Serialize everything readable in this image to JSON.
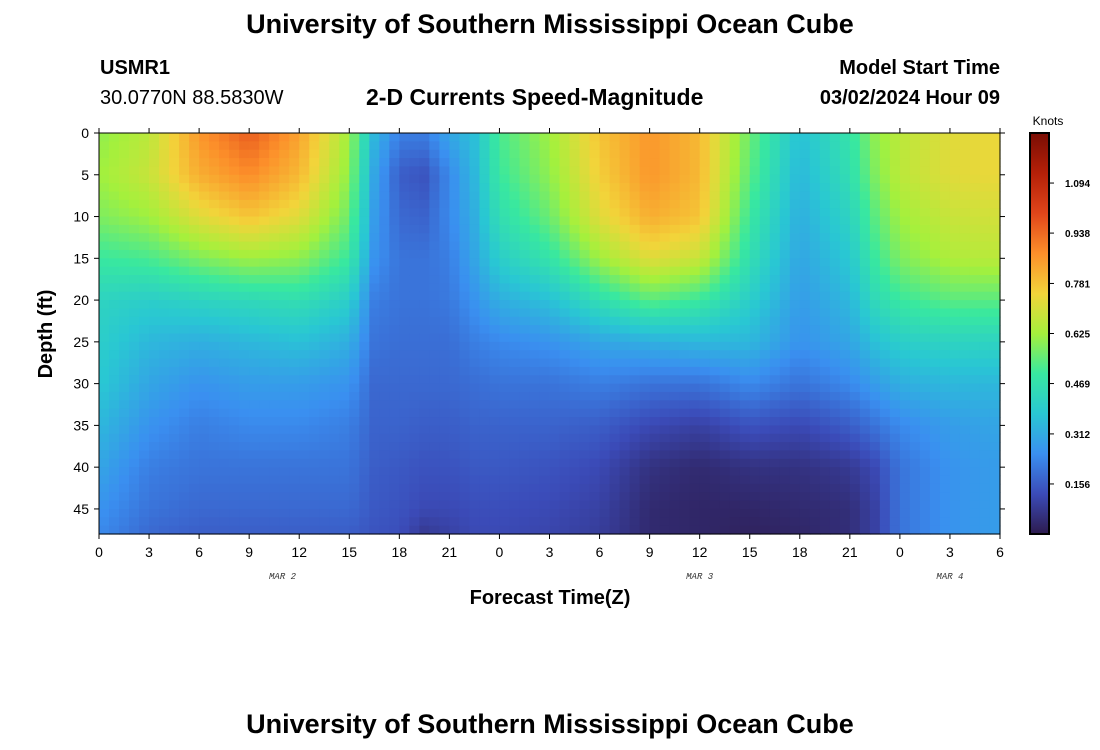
{
  "header": {
    "title": "University of Southern Mississippi Ocean Cube",
    "station_id": "USMR1",
    "coordinates": "30.0770N  88.5830W",
    "subtitle": "2-D Currents Speed-Magnitude",
    "model_start_label": "Model Start Time",
    "model_start_value": "03/02/2024 Hour 09"
  },
  "footer": {
    "title": "University of Southern Mississippi Ocean Cube"
  },
  "colors": {
    "ramp": [
      "#2d1b4e",
      "#3b4bb8",
      "#3a8ff0",
      "#29c7d3",
      "#38e8a0",
      "#a5f03c",
      "#f2d43a",
      "#fc8f2a",
      "#e0451a",
      "#b52008",
      "#7a0d04"
    ]
  },
  "chart_data": {
    "type": "heatmap",
    "xlabel": "Forecast Time(Z)",
    "ylabel": "Depth (ft)",
    "x_tick_labels": [
      "0",
      "3",
      "6",
      "9",
      "12",
      "15",
      "18",
      "21",
      "0",
      "3",
      "6",
      "9",
      "12",
      "15",
      "18",
      "21",
      "0",
      "3",
      "6"
    ],
    "x_range_hours": [
      0,
      54
    ],
    "date_labels": [
      {
        "text": "MAR 2",
        "hour": 11
      },
      {
        "text": "MAR 3",
        "hour": 36
      },
      {
        "text": "MAR 4",
        "hour": 51
      }
    ],
    "y_ticks": [
      0,
      5,
      10,
      15,
      20,
      25,
      30,
      35,
      40,
      45
    ],
    "y_range_ft": [
      0,
      48
    ],
    "y_reversed": true,
    "colorbar": {
      "title": "Knots",
      "ticks": [
        "1.094",
        "0.938",
        "0.781",
        "0.625",
        "0.469",
        "0.312",
        "0.156"
      ],
      "range": [
        0,
        1.25
      ]
    },
    "speed_knots_grid": {
      "hours": [
        0,
        3,
        6,
        9,
        12,
        15,
        16.5,
        18,
        19.5,
        21,
        22.5,
        24,
        27,
        30,
        33,
        36,
        39,
        42,
        45,
        46.5,
        48,
        51,
        54
      ],
      "depths_ft": [
        0,
        5,
        10,
        15,
        20,
        25,
        30,
        35,
        40,
        45,
        48
      ],
      "values": [
        [
          0.6,
          0.62,
          0.58,
          0.5,
          0.42,
          0.4,
          0.38,
          0.34,
          0.3,
          0.26,
          0.24
        ],
        [
          0.66,
          0.68,
          0.62,
          0.52,
          0.4,
          0.34,
          0.3,
          0.26,
          0.22,
          0.2,
          0.18
        ],
        [
          0.86,
          0.82,
          0.72,
          0.58,
          0.42,
          0.32,
          0.26,
          0.22,
          0.2,
          0.18,
          0.16
        ],
        [
          0.96,
          0.88,
          0.78,
          0.62,
          0.44,
          0.34,
          0.28,
          0.24,
          0.2,
          0.18,
          0.16
        ],
        [
          0.84,
          0.8,
          0.72,
          0.6,
          0.46,
          0.36,
          0.28,
          0.24,
          0.2,
          0.18,
          0.16
        ],
        [
          0.62,
          0.6,
          0.56,
          0.5,
          0.4,
          0.32,
          0.26,
          0.22,
          0.2,
          0.18,
          0.16
        ],
        [
          0.34,
          0.3,
          0.28,
          0.26,
          0.22,
          0.2,
          0.18,
          0.17,
          0.16,
          0.15,
          0.14
        ],
        [
          0.22,
          0.16,
          0.18,
          0.2,
          0.2,
          0.19,
          0.18,
          0.17,
          0.15,
          0.14,
          0.13
        ],
        [
          0.22,
          0.14,
          0.17,
          0.2,
          0.2,
          0.19,
          0.18,
          0.16,
          0.14,
          0.12,
          0.08
        ],
        [
          0.3,
          0.24,
          0.24,
          0.22,
          0.21,
          0.19,
          0.18,
          0.16,
          0.14,
          0.12,
          0.1
        ],
        [
          0.36,
          0.34,
          0.32,
          0.3,
          0.26,
          0.22,
          0.19,
          0.17,
          0.15,
          0.13,
          0.12
        ],
        [
          0.52,
          0.5,
          0.46,
          0.4,
          0.32,
          0.24,
          0.2,
          0.17,
          0.15,
          0.13,
          0.12
        ],
        [
          0.62,
          0.6,
          0.56,
          0.48,
          0.36,
          0.26,
          0.2,
          0.17,
          0.14,
          0.12,
          0.11
        ],
        [
          0.78,
          0.76,
          0.72,
          0.62,
          0.46,
          0.3,
          0.22,
          0.16,
          0.12,
          0.1,
          0.09
        ],
        [
          0.86,
          0.86,
          0.82,
          0.72,
          0.54,
          0.32,
          0.2,
          0.12,
          0.06,
          0.04,
          0.04
        ],
        [
          0.8,
          0.8,
          0.78,
          0.68,
          0.5,
          0.34,
          0.2,
          0.1,
          0.04,
          0.03,
          0.03
        ],
        [
          0.56,
          0.54,
          0.5,
          0.46,
          0.4,
          0.34,
          0.24,
          0.14,
          0.06,
          0.03,
          0.02
        ],
        [
          0.36,
          0.34,
          0.32,
          0.3,
          0.28,
          0.26,
          0.2,
          0.12,
          0.06,
          0.04,
          0.03
        ],
        [
          0.48,
          0.46,
          0.42,
          0.38,
          0.34,
          0.3,
          0.24,
          0.16,
          0.08,
          0.05,
          0.05
        ],
        [
          0.6,
          0.58,
          0.54,
          0.5,
          0.44,
          0.36,
          0.28,
          0.2,
          0.12,
          0.1,
          0.1
        ],
        [
          0.66,
          0.66,
          0.62,
          0.58,
          0.5,
          0.4,
          0.32,
          0.24,
          0.2,
          0.2,
          0.2
        ],
        [
          0.72,
          0.72,
          0.68,
          0.64,
          0.54,
          0.42,
          0.34,
          0.28,
          0.26,
          0.26,
          0.26
        ],
        [
          0.74,
          0.74,
          0.7,
          0.66,
          0.54,
          0.42,
          0.34,
          0.3,
          0.28,
          0.28,
          0.28
        ]
      ]
    }
  }
}
